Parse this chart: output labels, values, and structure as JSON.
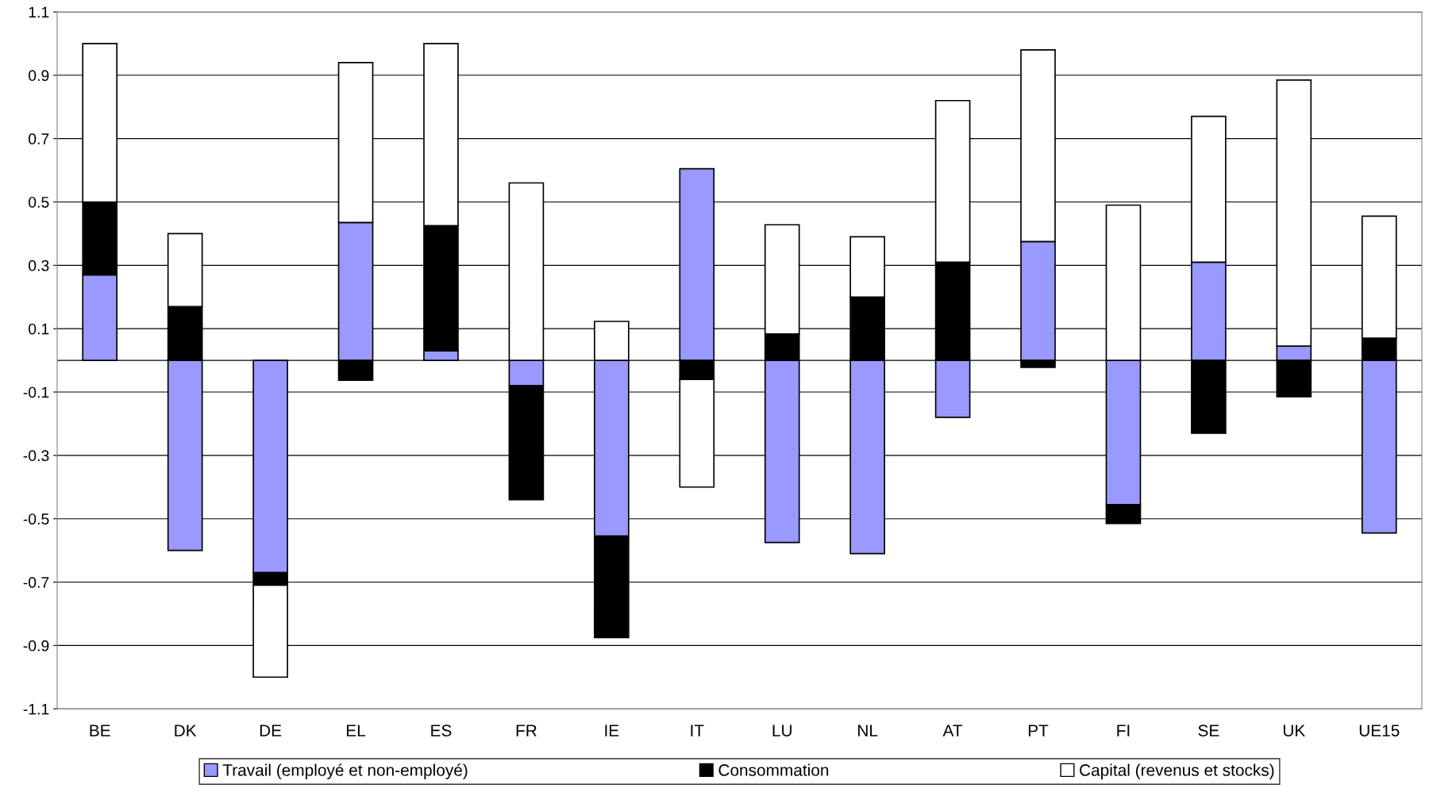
{
  "chart_data": {
    "type": "bar",
    "stacked": true,
    "categories": [
      "BE",
      "DK",
      "DE",
      "EL",
      "ES",
      "FR",
      "IE",
      "IT",
      "LU",
      "NL",
      "AT",
      "PT",
      "FI",
      "SE",
      "UK",
      "UE15"
    ],
    "series": [
      {
        "name": "Travail (employé et non-employé)",
        "color": "#9999ff",
        "values": [
          0.27,
          -0.6,
          -0.67,
          0.435,
          0.03,
          -0.08,
          -0.555,
          0.605,
          -0.575,
          -0.61,
          -0.18,
          0.375,
          -0.455,
          0.31,
          0.045,
          -0.545
        ]
      },
      {
        "name": "Consommation",
        "color": "#000000",
        "values": [
          0.23,
          0.17,
          -0.04,
          -0.063,
          0.395,
          -0.36,
          -0.32,
          -0.06,
          0.083,
          0.2,
          0.31,
          -0.022,
          -0.06,
          -0.23,
          -0.115,
          0.07
        ]
      },
      {
        "name": "Capital (revenus et stocks)",
        "color": "#ffffff",
        "values": [
          0.5,
          0.23,
          -0.29,
          0.505,
          0.575,
          0.56,
          0.123,
          -0.34,
          0.345,
          0.19,
          0.51,
          0.605,
          0.49,
          0.46,
          0.84,
          0.385
        ]
      }
    ],
    "ylim": [
      -1.1,
      1.1
    ],
    "yticks": [
      {
        "value": -1.1,
        "label": "-1.1"
      },
      {
        "value": -0.9,
        "label": "-0.9"
      },
      {
        "value": -0.7,
        "label": "-0.7"
      },
      {
        "value": -0.5,
        "label": "-0.5"
      },
      {
        "value": -0.3,
        "label": "-0.3"
      },
      {
        "value": -0.1,
        "label": "-0.1"
      },
      0.1,
      0.3,
      0.5,
      0.7,
      0.9,
      1.1
    ],
    "grid": "y",
    "legend": "bottom",
    "ref_lines": [
      {
        "axis": "y",
        "value": 0,
        "color": "#000000"
      }
    ]
  }
}
